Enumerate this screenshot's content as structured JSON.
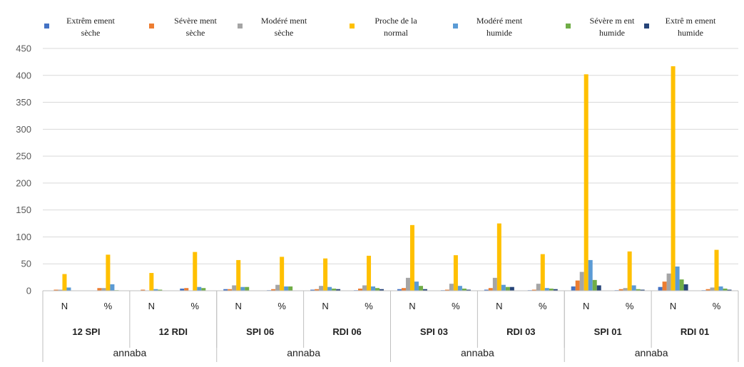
{
  "colors": {
    "Extrême ment sèche": "#4472C4",
    "Sévère ment sèche": "#ED7D31",
    "Modéré ment sèche": "#A5A5A5",
    "Proche de la normal": "#FFC000",
    "Modéré ment humide": "#5B9BD5",
    "Sévère m ent humide": "#70AD47",
    "Extrê m ement humide": "#264478"
  },
  "chart_data": {
    "type": "bar",
    "ylim": [
      0,
      450
    ],
    "yticks": [
      0,
      50,
      100,
      150,
      200,
      250,
      300,
      350,
      400,
      450
    ],
    "legend_position": "top",
    "grid": true,
    "categories": [
      "N",
      "%",
      "N",
      "%",
      "N",
      "%",
      "N",
      "%",
      "N",
      "%",
      "N",
      "%",
      "N",
      "%",
      "N",
      "%"
    ],
    "groups": [
      "12 SPI",
      "12 RDI",
      "SPI 06",
      "RDI 06",
      "SPI 03",
      "RDI 03",
      "SPI 01",
      "RDI 01"
    ],
    "stations": [
      "annaba",
      "annaba",
      "annaba",
      "annaba"
    ],
    "series": [
      {
        "name": "Extrêm ement\nsèche",
        "values": [
          0,
          0,
          0,
          4,
          3,
          1,
          2,
          1,
          3,
          1,
          2,
          1,
          8,
          1,
          7,
          1
        ]
      },
      {
        "name": "Sévère ment\nsèche",
        "values": [
          2,
          5,
          2,
          5,
          3,
          3,
          3,
          4,
          5,
          2,
          5,
          2,
          19,
          3,
          17,
          3
        ]
      },
      {
        "name": "Modéré ment\nsèche",
        "values": [
          2,
          5,
          0,
          0,
          10,
          11,
          9,
          10,
          24,
          13,
          24,
          13,
          35,
          5,
          32,
          6
        ]
      },
      {
        "name": "Proche de la\nnormal",
        "values": [
          31,
          67,
          33,
          72,
          57,
          63,
          60,
          65,
          122,
          66,
          125,
          68,
          402,
          73,
          417,
          76
        ]
      },
      {
        "name": "Modéré ment\nhumide",
        "values": [
          6,
          12,
          3,
          7,
          7,
          8,
          7,
          8,
          17,
          9,
          11,
          5,
          57,
          10,
          45,
          8
        ]
      },
      {
        "name": "Sévère m ent\nhumide",
        "values": [
          0,
          1,
          2,
          5,
          7,
          8,
          4,
          5,
          9,
          4,
          7,
          4,
          20,
          3,
          21,
          4
        ]
      },
      {
        "name": "Extrê m ement\nhumide",
        "values": [
          0,
          0,
          0,
          0,
          0,
          0,
          3,
          3,
          3,
          2,
          7,
          3,
          10,
          2,
          12,
          2
        ]
      }
    ]
  }
}
